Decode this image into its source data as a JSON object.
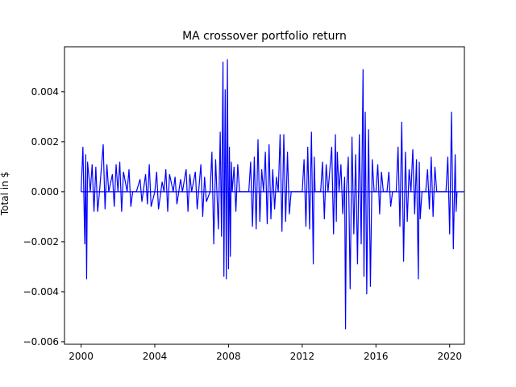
{
  "chart_data": {
    "type": "line",
    "title": "MA crossover portfolio return",
    "xlabel": "",
    "ylabel": "Total in $",
    "xlim": [
      1999.1,
      2020.8
    ],
    "ylim": [
      -0.0061,
      0.0058
    ],
    "xticks": [
      {
        "value": 2000,
        "label": "2000"
      },
      {
        "value": 2004,
        "label": "2004"
      },
      {
        "value": 2008,
        "label": "2008"
      },
      {
        "value": 2012,
        "label": "2012"
      },
      {
        "value": 2016,
        "label": "2016"
      },
      {
        "value": 2020,
        "label": "2020"
      }
    ],
    "yticks": [
      {
        "value": 0.004,
        "label": "0.004"
      },
      {
        "value": 0.002,
        "label": "0.002"
      },
      {
        "value": 0.0,
        "label": "0.000"
      },
      {
        "value": -0.002,
        "label": "−0.002"
      },
      {
        "value": -0.004,
        "label": "−0.004"
      },
      {
        "value": -0.006,
        "label": "−0.006"
      }
    ],
    "grid": false,
    "series": [
      {
        "color": "#0000ff",
        "x": [
          2000.0,
          2020.8
        ],
        "y": [
          0.0,
          0.0
        ]
      },
      {
        "color": "#0000ff",
        "points": [
          [
            2000.0,
            0.0
          ],
          [
            2000.1,
            0.0018
          ],
          [
            2000.2,
            -0.0021
          ],
          [
            2000.25,
            0.0015
          ],
          [
            2000.3,
            -0.0035
          ],
          [
            2000.35,
            0.0012
          ],
          [
            2000.5,
            0.0
          ],
          [
            2000.6,
            0.0011
          ],
          [
            2000.7,
            -0.0008
          ],
          [
            2000.8,
            0.001
          ],
          [
            2000.9,
            -0.0008
          ],
          [
            2001.0,
            0.0
          ],
          [
            2001.2,
            0.0019
          ],
          [
            2001.3,
            -0.0007
          ],
          [
            2001.4,
            0.0011
          ],
          [
            2001.5,
            0.0
          ],
          [
            2001.7,
            0.0007
          ],
          [
            2001.8,
            -0.0006
          ],
          [
            2001.9,
            0.0011
          ],
          [
            2002.0,
            0.0
          ],
          [
            2002.1,
            0.0012
          ],
          [
            2002.2,
            -0.0008
          ],
          [
            2002.3,
            0.0008
          ],
          [
            2002.5,
            0.0
          ],
          [
            2002.6,
            0.0009
          ],
          [
            2002.7,
            -0.0006
          ],
          [
            2002.8,
            0.0
          ],
          [
            2003.0,
            0.0
          ],
          [
            2003.2,
            0.0005
          ],
          [
            2003.3,
            -0.0004
          ],
          [
            2003.5,
            0.0007
          ],
          [
            2003.6,
            -0.0005
          ],
          [
            2003.7,
            0.0011
          ],
          [
            2003.8,
            -0.0006
          ],
          [
            2004.0,
            0.0
          ],
          [
            2004.1,
            0.0008
          ],
          [
            2004.2,
            -0.0007
          ],
          [
            2004.4,
            0.0004
          ],
          [
            2004.5,
            0.0
          ],
          [
            2004.6,
            0.0009
          ],
          [
            2004.7,
            -0.0008
          ],
          [
            2004.8,
            0.0007
          ],
          [
            2005.0,
            0.0
          ],
          [
            2005.1,
            0.0006
          ],
          [
            2005.2,
            -0.0005
          ],
          [
            2005.4,
            0.0005
          ],
          [
            2005.5,
            0.0
          ],
          [
            2005.7,
            0.0009
          ],
          [
            2005.8,
            -0.0008
          ],
          [
            2005.9,
            0.0007
          ],
          [
            2006.0,
            0.0
          ],
          [
            2006.2,
            0.0008
          ],
          [
            2006.3,
            -0.0007
          ],
          [
            2006.5,
            0.0011
          ],
          [
            2006.6,
            -0.001
          ],
          [
            2006.7,
            0.0006
          ],
          [
            2006.8,
            -0.0004
          ],
          [
            2007.0,
            0.0
          ],
          [
            2007.1,
            0.0016
          ],
          [
            2007.2,
            -0.0021
          ],
          [
            2007.3,
            0.0013
          ],
          [
            2007.45,
            -0.0015
          ],
          [
            2007.55,
            0.0024
          ],
          [
            2007.62,
            -0.0018
          ],
          [
            2007.7,
            0.0052
          ],
          [
            2007.75,
            -0.0034
          ],
          [
            2007.82,
            0.0041
          ],
          [
            2007.88,
            -0.0035
          ],
          [
            2007.94,
            0.0053
          ],
          [
            2008.0,
            -0.0031
          ],
          [
            2008.05,
            0.0018
          ],
          [
            2008.1,
            -0.0026
          ],
          [
            2008.15,
            0.0012
          ],
          [
            2008.2,
            0.0
          ],
          [
            2008.3,
            0.001
          ],
          [
            2008.4,
            -0.0008
          ],
          [
            2008.5,
            0.0011
          ],
          [
            2008.6,
            0.0
          ],
          [
            2009.1,
            0.0
          ],
          [
            2009.2,
            0.0012
          ],
          [
            2009.3,
            -0.0014
          ],
          [
            2009.4,
            0.0014
          ],
          [
            2009.5,
            -0.0015
          ],
          [
            2009.6,
            0.0021
          ],
          [
            2009.7,
            -0.0012
          ],
          [
            2009.8,
            0.0009
          ],
          [
            2009.9,
            0.0
          ],
          [
            2010.0,
            0.0016
          ],
          [
            2010.1,
            -0.0013
          ],
          [
            2010.2,
            0.0019
          ],
          [
            2010.3,
            -0.0011
          ],
          [
            2010.4,
            0.0009
          ],
          [
            2010.5,
            -0.0007
          ],
          [
            2010.6,
            0.0006
          ],
          [
            2010.7,
            0.0
          ],
          [
            2010.8,
            0.0023
          ],
          [
            2010.9,
            -0.0016
          ],
          [
            2011.0,
            0.0023
          ],
          [
            2011.1,
            -0.0012
          ],
          [
            2011.2,
            0.0016
          ],
          [
            2011.3,
            -0.0009
          ],
          [
            2011.4,
            0.0
          ],
          [
            2012.0,
            0.0
          ],
          [
            2012.1,
            0.0013
          ],
          [
            2012.2,
            -0.0014
          ],
          [
            2012.3,
            0.0018
          ],
          [
            2012.4,
            -0.0015
          ],
          [
            2012.5,
            0.0024
          ],
          [
            2012.6,
            -0.0029
          ],
          [
            2012.65,
            0.0014
          ],
          [
            2012.7,
            0.0
          ],
          [
            2013.0,
            0.0
          ],
          [
            2013.1,
            0.0012
          ],
          [
            2013.2,
            -0.0011
          ],
          [
            2013.3,
            0.0011
          ],
          [
            2013.4,
            0.0
          ],
          [
            2013.6,
            0.0018
          ],
          [
            2013.7,
            -0.0017
          ],
          [
            2013.8,
            0.0023
          ],
          [
            2013.85,
            -0.0012
          ],
          [
            2013.9,
            0.0016
          ],
          [
            2014.0,
            0.0
          ],
          [
            2014.1,
            0.0011
          ],
          [
            2014.2,
            -0.0009
          ],
          [
            2014.3,
            0.0006
          ],
          [
            2014.35,
            -0.0055
          ],
          [
            2014.4,
            0.0
          ],
          [
            2014.5,
            0.0014
          ],
          [
            2014.6,
            -0.0039
          ],
          [
            2014.7,
            0.0022
          ],
          [
            2014.8,
            -0.0017
          ],
          [
            2014.9,
            0.0015
          ],
          [
            2015.0,
            -0.0029
          ],
          [
            2015.1,
            0.0023
          ],
          [
            2015.2,
            -0.0021
          ],
          [
            2015.3,
            0.0049
          ],
          [
            2015.35,
            -0.0034
          ],
          [
            2015.42,
            0.0032
          ],
          [
            2015.5,
            -0.0041
          ],
          [
            2015.6,
            0.0025
          ],
          [
            2015.7,
            -0.0038
          ],
          [
            2015.8,
            0.0013
          ],
          [
            2015.9,
            0.0
          ],
          [
            2016.0,
            0.0
          ],
          [
            2016.1,
            0.0011
          ],
          [
            2016.2,
            -0.0009
          ],
          [
            2016.3,
            0.0008
          ],
          [
            2016.4,
            0.0
          ],
          [
            2016.6,
            0.0
          ],
          [
            2016.7,
            0.0008
          ],
          [
            2016.8,
            -0.0006
          ],
          [
            2016.9,
            0.0
          ],
          [
            2017.1,
            0.0
          ],
          [
            2017.2,
            0.0018
          ],
          [
            2017.3,
            -0.0014
          ],
          [
            2017.4,
            0.0028
          ],
          [
            2017.5,
            -0.0028
          ],
          [
            2017.6,
            0.0016
          ],
          [
            2017.7,
            -0.0012
          ],
          [
            2017.8,
            0.0009
          ],
          [
            2017.9,
            0.0
          ],
          [
            2018.0,
            0.0017
          ],
          [
            2018.1,
            -0.0009
          ],
          [
            2018.2,
            0.0013
          ],
          [
            2018.3,
            -0.0035
          ],
          [
            2018.35,
            0.0012
          ],
          [
            2018.4,
            -0.0011
          ],
          [
            2018.5,
            0.0
          ],
          [
            2018.7,
            0.0
          ],
          [
            2018.8,
            0.0009
          ],
          [
            2018.9,
            -0.0007
          ],
          [
            2019.0,
            0.0014
          ],
          [
            2019.1,
            -0.001
          ],
          [
            2019.2,
            0.001
          ],
          [
            2019.3,
            0.0
          ],
          [
            2019.8,
            0.0
          ],
          [
            2019.9,
            0.0014
          ],
          [
            2020.0,
            -0.0017
          ],
          [
            2020.1,
            0.0032
          ],
          [
            2020.2,
            -0.0023
          ],
          [
            2020.3,
            0.0015
          ],
          [
            2020.35,
            -0.0008
          ],
          [
            2020.4,
            0.0
          ]
        ]
      }
    ]
  }
}
